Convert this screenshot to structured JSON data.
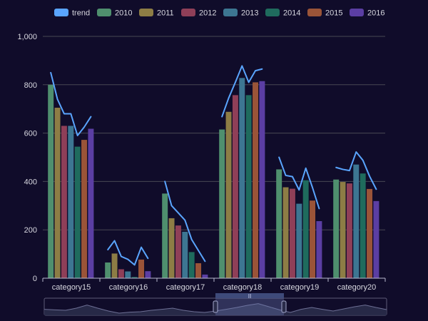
{
  "chart_data": {
    "type": "bar",
    "categories": [
      "category15",
      "category16",
      "category17",
      "category18",
      "category19",
      "category20"
    ],
    "ylim": [
      0,
      1000
    ],
    "y_ticks": [
      "0",
      "200",
      "400",
      "600",
      "800",
      "1,000"
    ],
    "grid": true,
    "legend_position": "top-center",
    "series": [
      {
        "name": "2010",
        "color": "#4f8f6e",
        "values": [
          800,
          65,
          350,
          615,
          450,
          408
        ]
      },
      {
        "name": "2011",
        "color": "#8d7d45",
        "values": [
          705,
          102,
          248,
          688,
          376,
          398
        ]
      },
      {
        "name": "2012",
        "color": "#8f3f58",
        "values": [
          630,
          37,
          218,
          757,
          370,
          392
        ]
      },
      {
        "name": "2013",
        "color": "#3d7692",
        "values": [
          630,
          28,
          192,
          828,
          308,
          470
        ]
      },
      {
        "name": "2014",
        "color": "#1f6b5d",
        "values": [
          544,
          5,
          108,
          757,
          405,
          433
        ]
      },
      {
        "name": "2015",
        "color": "#9a5438",
        "values": [
          572,
          77,
          62,
          810,
          321,
          369
        ]
      },
      {
        "name": "2016",
        "color": "#5b3ea3",
        "values": [
          618,
          29,
          15,
          815,
          236,
          319
        ]
      }
    ],
    "trend": {
      "name": "trend",
      "color": "#5aa5ff",
      "values": [
        [
          850,
          740,
          680,
          680,
          590,
          625,
          668
        ],
        [
          118,
          155,
          90,
          78,
          55,
          128,
          82
        ],
        [
          400,
          300,
          270,
          240,
          160,
          115,
          70
        ],
        [
          668,
          745,
          810,
          878,
          810,
          858,
          865
        ],
        [
          500,
          425,
          420,
          365,
          455,
          375,
          288
        ],
        [
          458,
          450,
          445,
          522,
          488,
          422,
          368
        ]
      ]
    },
    "data_zoom": {
      "start_fraction": 0.5,
      "end_fraction": 0.7,
      "preview": [
        0.42,
        0.38,
        0.35,
        0.5,
        0.72,
        0.5,
        0.3,
        0.15,
        0.22,
        0.25,
        0.35,
        0.42,
        0.5,
        0.35,
        0.25,
        0.2,
        0.3,
        0.42,
        0.55,
        0.7,
        0.82,
        0.6,
        0.38,
        0.2,
        0.42,
        0.55,
        0.42,
        0.3,
        0.45,
        0.6,
        0.72,
        0.55,
        0.4
      ]
    }
  }
}
